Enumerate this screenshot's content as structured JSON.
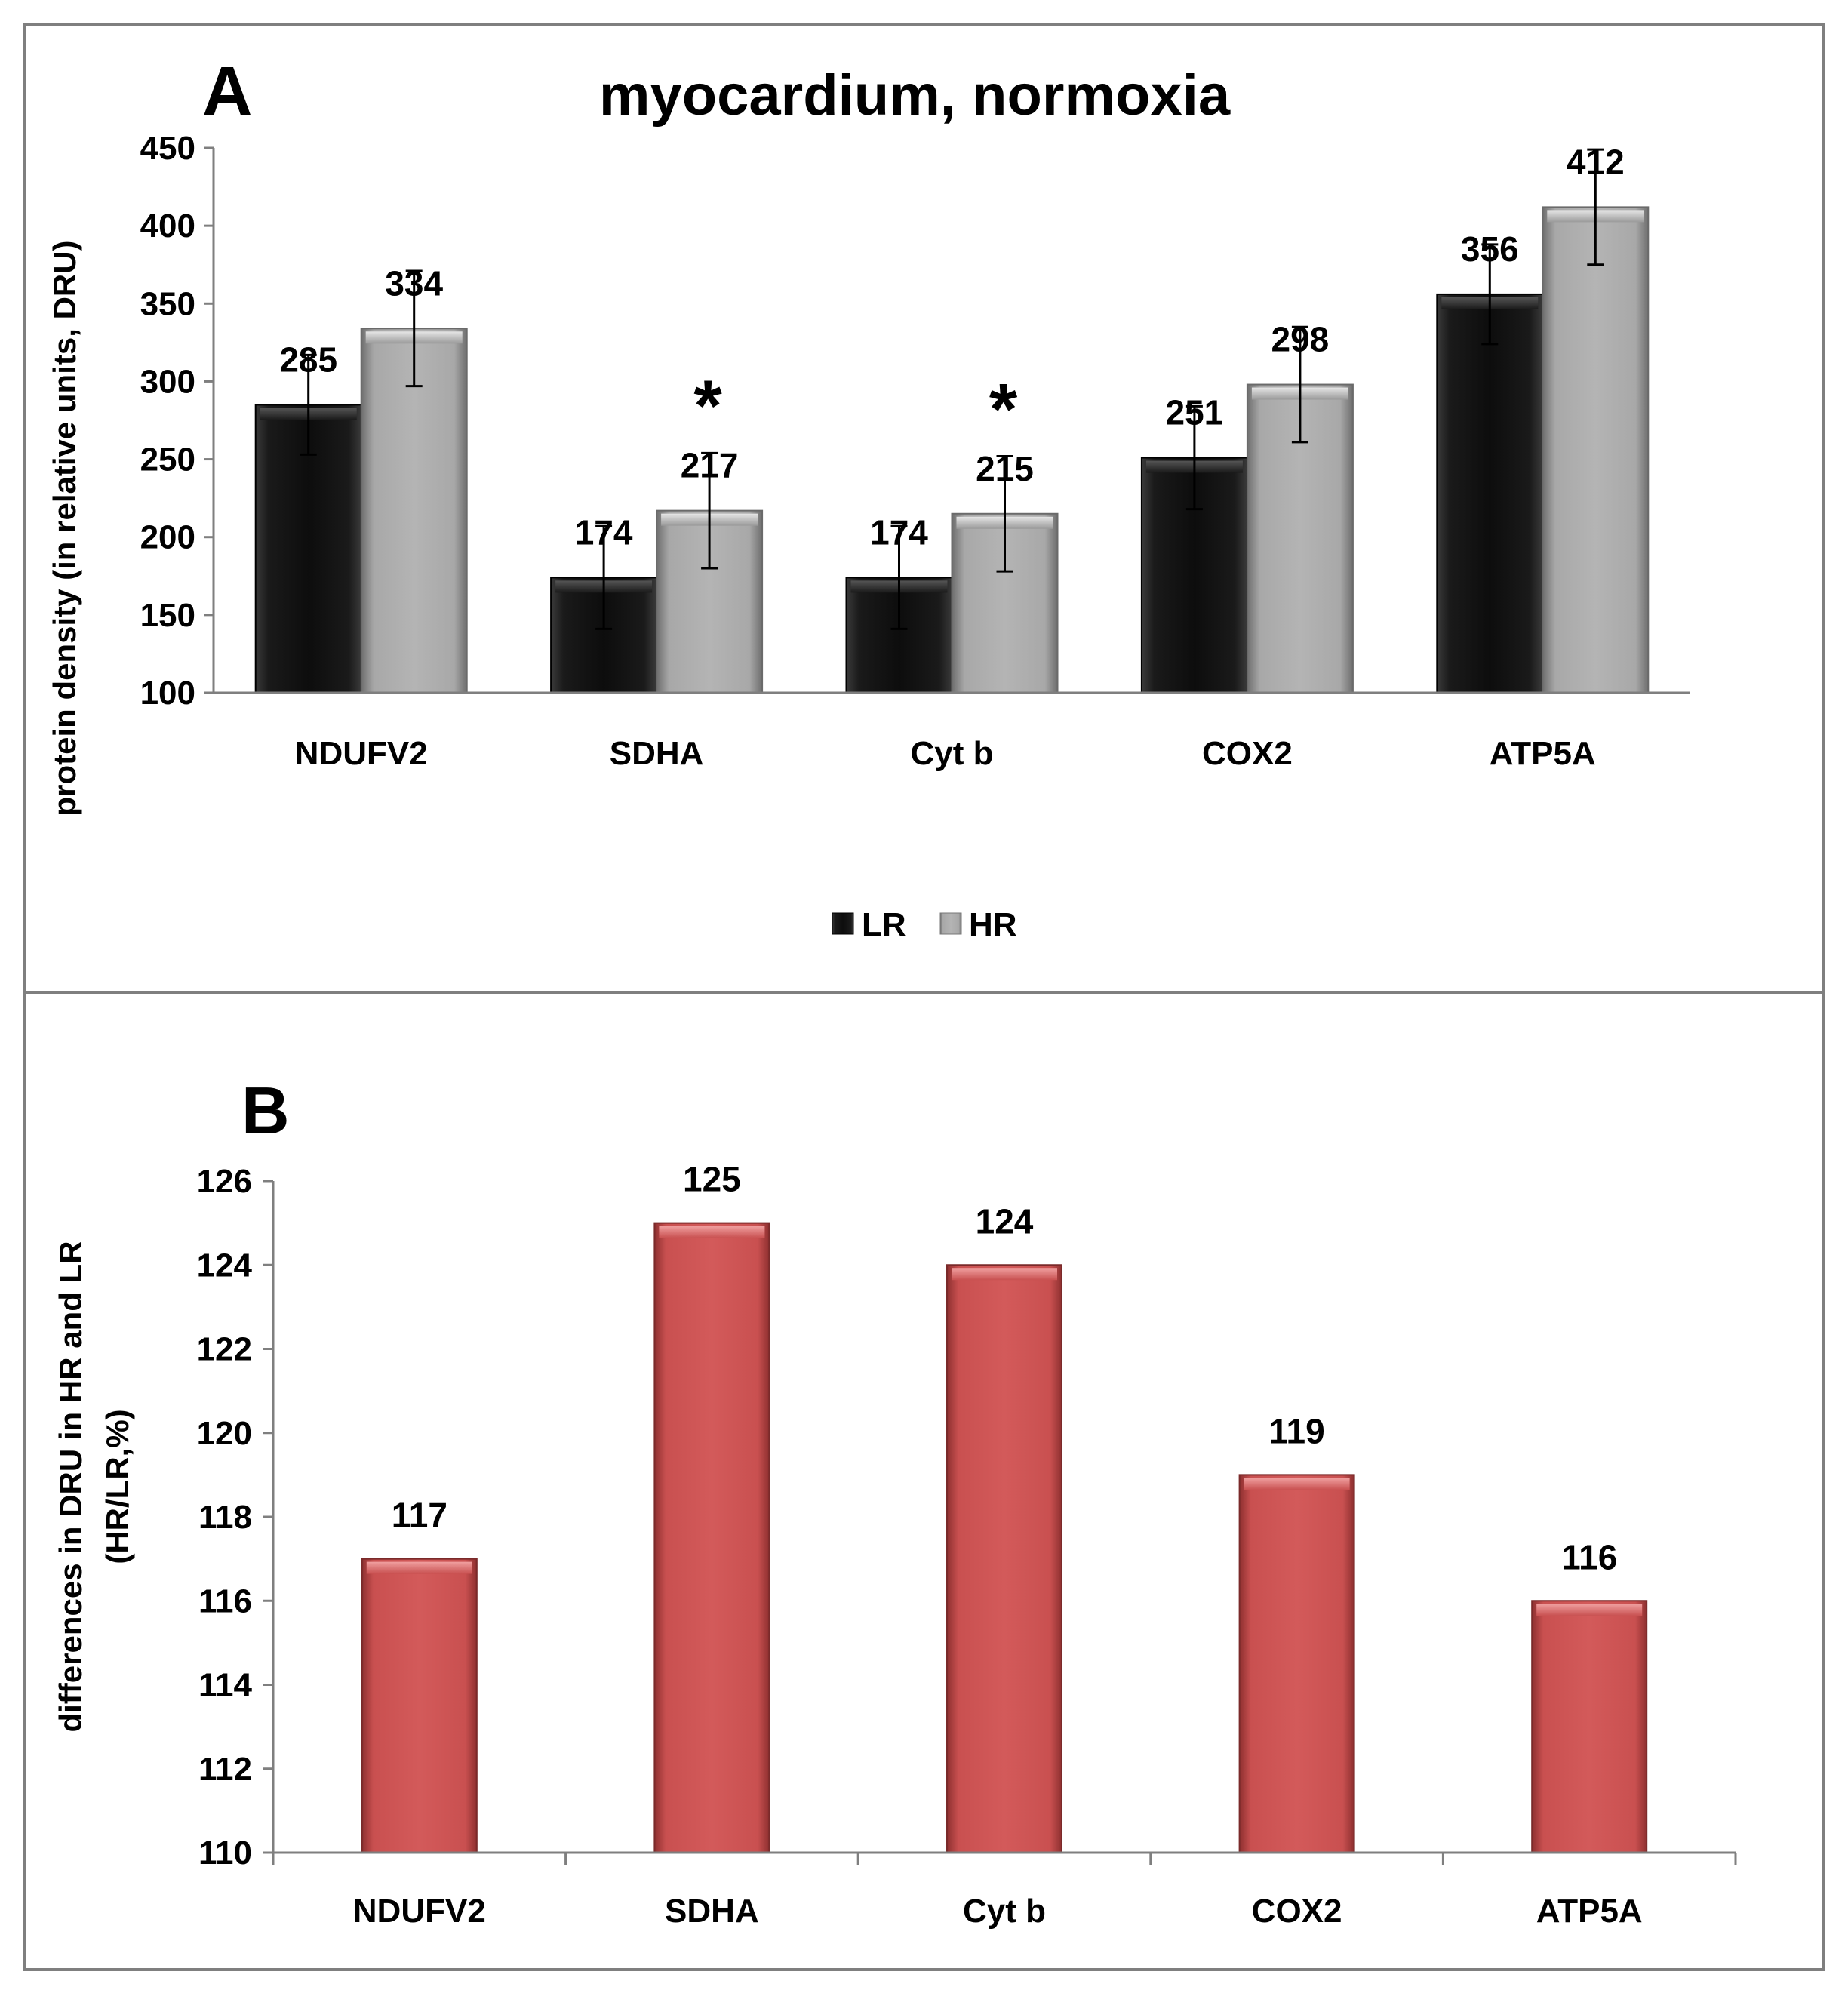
{
  "chart_data": [
    {
      "type": "bar",
      "panel_letter": "A",
      "title": "myocardium, normoxia",
      "xlabel": "",
      "ylabel": "protein density (in relative units,  DRU)",
      "categories": [
        "NDUFV2",
        "SDHA",
        "Cyt b",
        "COX2",
        "ATP5A"
      ],
      "ylim": [
        100,
        450
      ],
      "yticks": [
        "100",
        "150",
        "200",
        "250",
        "300",
        "350",
        "400",
        "450"
      ],
      "series": [
        {
          "name": "LR",
          "values": [
            285,
            174,
            174,
            251,
            356
          ],
          "labels": [
            "285",
            "174",
            "174",
            "251",
            "356"
          ],
          "errors": [
            32,
            33,
            33,
            33,
            32
          ],
          "color": "#111111"
        },
        {
          "name": "HR",
          "values": [
            334,
            217,
            215,
            298,
            412
          ],
          "labels": [
            "334",
            "217",
            "215",
            "298",
            "412"
          ],
          "errors": [
            37,
            37,
            37,
            37,
            37
          ],
          "color": "#a6a6a6"
        }
      ],
      "significance": [
        {
          "category": "SDHA",
          "symbol": "*"
        },
        {
          "category": "Cyt b",
          "symbol": "*"
        }
      ],
      "legend": "bottom-center"
    },
    {
      "type": "bar",
      "panel_letter": "B",
      "title": "",
      "xlabel": "",
      "ylabel_lines": [
        "differences in DRU in HR and LR",
        "(HR/LR,%)"
      ],
      "categories": [
        "NDUFV2",
        "SDHA",
        "Cyt b",
        "COX2",
        "ATP5A"
      ],
      "ylim": [
        110,
        126
      ],
      "yticks": [
        "110",
        "112",
        "114",
        "116",
        "118",
        "120",
        "122",
        "124",
        "126"
      ],
      "values": [
        117,
        125,
        124,
        119,
        116
      ],
      "labels": [
        "117",
        "125",
        "124",
        "119",
        "116"
      ],
      "color": "#cd5555"
    }
  ]
}
